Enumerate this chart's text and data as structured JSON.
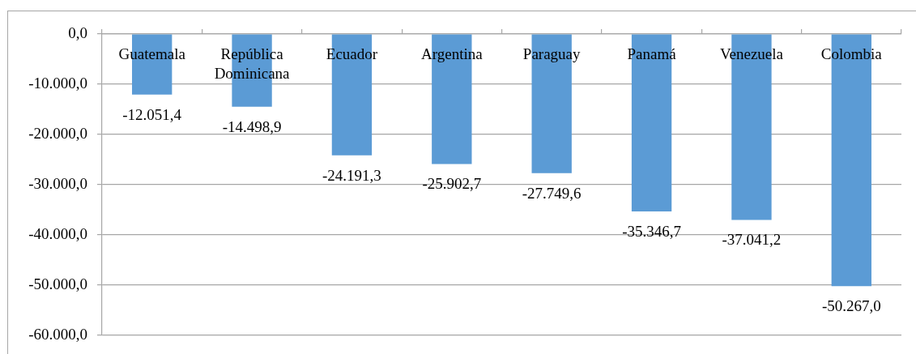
{
  "chart_data": {
    "type": "bar",
    "categories": [
      "Guatemala",
      "República Dominicana",
      "Ecuador",
      "Argentina",
      "Paraguay",
      "Panamá",
      "Venezuela",
      "Colombia"
    ],
    "values": [
      -12051.4,
      -14498.9,
      -24191.3,
      -25902.7,
      -27749.6,
      -35346.7,
      -37041.2,
      -50267.0
    ],
    "value_labels": [
      "-12.051,4",
      "-14.498,9",
      "-24.191,3",
      "-25.902,7",
      "-27.749,6",
      "-35.346,7",
      "-37.041,2",
      "-50.267,0"
    ],
    "color": "#5b9bd5",
    "ylim": [
      -60000,
      0
    ],
    "yticks": [
      {
        "value": -60000,
        "label": "-60.000,0"
      },
      {
        "value": -50000,
        "label": "-50.000,0"
      },
      {
        "value": -40000,
        "label": "-40.000,0"
      },
      {
        "value": -30000,
        "label": "-30.000,0"
      },
      {
        "value": -20000,
        "label": "-20.000,0"
      },
      {
        "value": -10000,
        "label": "-10.000,0"
      },
      {
        "value": 0,
        "label": "0,0"
      }
    ],
    "grid": "y"
  }
}
